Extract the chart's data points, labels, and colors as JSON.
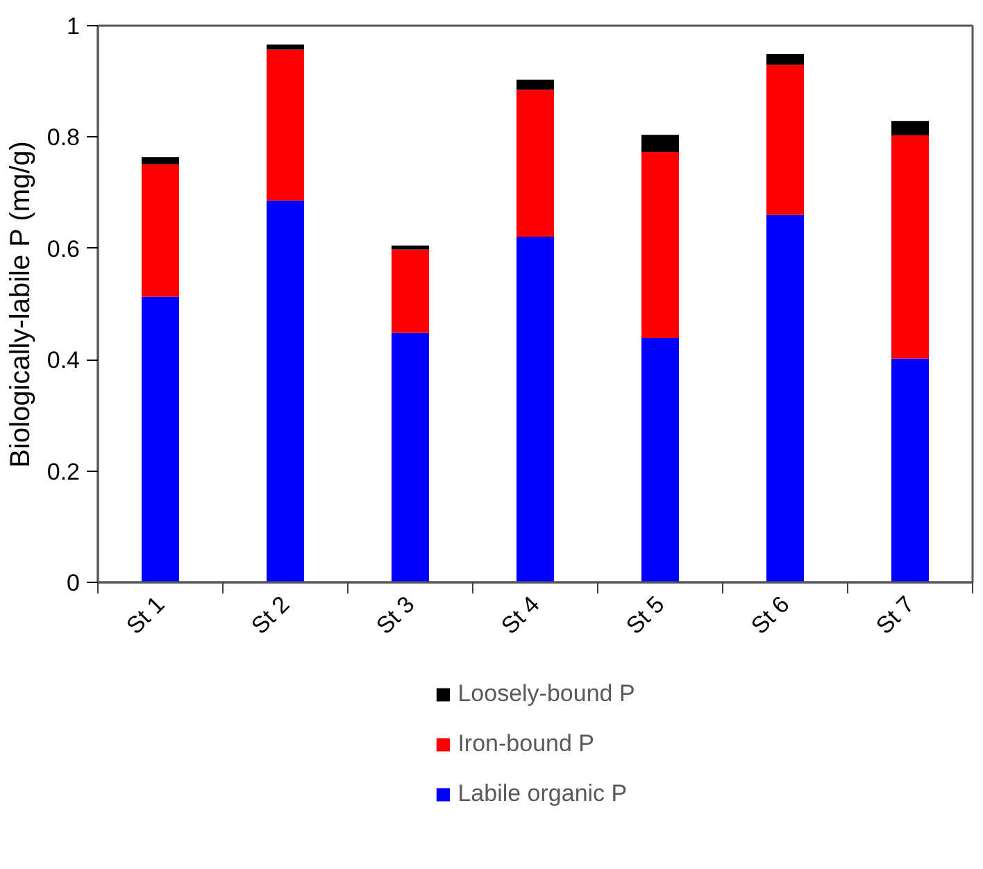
{
  "chart_data": {
    "type": "bar",
    "stacked": true,
    "ylabel": "Biologically-labile P (mg/g)",
    "categories": [
      "St 1",
      "St 2",
      "St 3",
      "St 4",
      "St 5",
      "St 6",
      "St 7"
    ],
    "series": [
      {
        "name": "Labile organic P",
        "color": "#0000ff",
        "values": [
          0.513,
          0.686,
          0.448,
          0.621,
          0.439,
          0.66,
          0.402
        ]
      },
      {
        "name": "Iron-bound P",
        "color": "#ff0000",
        "values": [
          0.238,
          0.271,
          0.15,
          0.264,
          0.334,
          0.27,
          0.401
        ]
      },
      {
        "name": "Loosely-bound P",
        "color": "#000000",
        "values": [
          0.013,
          0.009,
          0.007,
          0.018,
          0.031,
          0.019,
          0.026
        ]
      }
    ],
    "ylim": [
      0,
      1
    ],
    "yticks": [
      0,
      {
        "value": 0.2,
        "label": "0.2"
      },
      {
        "value": 0.4,
        "label": "0.4"
      },
      {
        "value": 0.6,
        "label": "0.6"
      },
      {
        "value": 0.8,
        "label": "0.8"
      },
      1
    ],
    "grid": false,
    "legend": "bottom"
  }
}
